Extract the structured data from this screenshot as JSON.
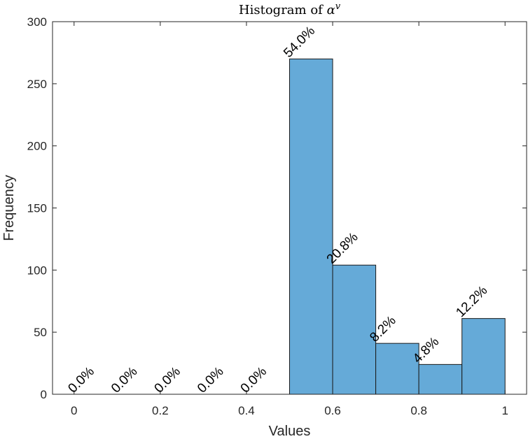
{
  "chart_data": {
    "type": "bar",
    "title": "Histogram of ",
    "title_symbol": "α",
    "title_superscript": "v",
    "xlabel": "Values",
    "ylabel": "Frequency",
    "xlim": [
      -0.05,
      1.05
    ],
    "ylim": [
      0,
      300
    ],
    "xticks": [
      0,
      0.2,
      0.4,
      0.6,
      0.8,
      1
    ],
    "xtick_labels": [
      "0",
      "0.2",
      "0.4",
      "0.6",
      "0.8",
      "1"
    ],
    "yticks": [
      0,
      50,
      100,
      150,
      200,
      250,
      300
    ],
    "ytick_labels": [
      "0",
      "50",
      "100",
      "150",
      "200",
      "250",
      "300"
    ],
    "grid": false,
    "bar_color": "#65aad8",
    "edge_color": "#1a1a1a",
    "bins": [
      {
        "start": 0.0,
        "end": 0.1,
        "value": 0,
        "label": "0.0%"
      },
      {
        "start": 0.1,
        "end": 0.2,
        "value": 0,
        "label": "0.0%"
      },
      {
        "start": 0.2,
        "end": 0.3,
        "value": 0,
        "label": "0.0%"
      },
      {
        "start": 0.3,
        "end": 0.4,
        "value": 0,
        "label": "0.0%"
      },
      {
        "start": 0.4,
        "end": 0.5,
        "value": 0,
        "label": "0.0%"
      },
      {
        "start": 0.5,
        "end": 0.6,
        "value": 270,
        "label": "54.0%"
      },
      {
        "start": 0.6,
        "end": 0.7,
        "value": 104,
        "label": "20.8%"
      },
      {
        "start": 0.7,
        "end": 0.8,
        "value": 41,
        "label": "8.2%"
      },
      {
        "start": 0.8,
        "end": 0.9,
        "value": 24,
        "label": "4.8%"
      },
      {
        "start": 0.9,
        "end": 1.0,
        "value": 61,
        "label": "12.2%"
      }
    ]
  }
}
